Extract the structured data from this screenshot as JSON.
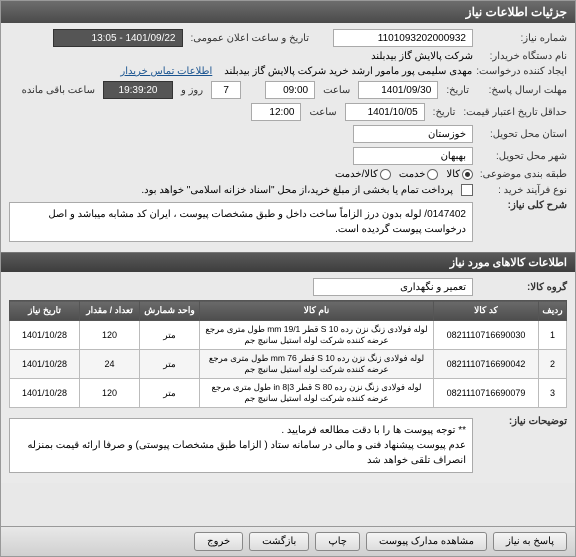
{
  "window": {
    "title": "جزئیات اطلاعات نیاز"
  },
  "need": {
    "number_label": "شماره نیاز:",
    "number": "1101093202000932",
    "announce_label": "تاریخ و ساعت اعلان عمومی:",
    "announce": "1401/09/22 - 13:05",
    "buyer_label": "نام دستگاه خریدار:",
    "buyer": "شرکت پالایش گاز بیدبلند",
    "creator_label": "ایجاد کننده درخواست:",
    "creator": "مهدی سلیمی پور مامور ارشد خرید شرکت پالایش گاز بیدبلند",
    "contact_link": "اطلاعات تماس خریدار",
    "deadline_label": "حداقل تاریخ اعتبار قیمت:",
    "deadline_date": "1401/10/05",
    "deadline_time": "12:00",
    "reply_deadline_label": "مهلت ارسال پاسخ:",
    "reply_date": "1401/09/30",
    "reply_time": "09:00",
    "days_label": "روز و",
    "days": "7",
    "remain_time": "19:39:20",
    "remain_label": "ساعت باقی مانده",
    "time_label": "ساعت",
    "province_label": "استان محل تحویل:",
    "province": "خوزستان",
    "city_label": "شهر محل تحویل:",
    "city": "بهبهان",
    "subject_label": "طبقه بندی موضوعی:",
    "subject_goods": "کالا",
    "subject_service": "خدمت",
    "subject_both": "کالا/خدمت",
    "process_label": "نوع فرآیند خرید :",
    "process_note": "پرداخت تمام یا بخشی از مبلغ خرید،از محل \"اسناد خزانه اسلامی\" خواهد بود.",
    "desc_label": "شرح کلی نیاز:",
    "desc": "0147402/ لوله بدون درز الزاماً ساخت داخل و طبق مشخصات پیوست ، ایران کد مشابه میباشد و اصل درخواست پیوست گردیده است."
  },
  "items": {
    "header": "اطلاعات کالاهای مورد نیاز",
    "group_label": "گروه کالا:",
    "group": "تعمیر و نگهداری",
    "columns": {
      "row": "ردیف",
      "code": "کد کالا",
      "name": "نام کالا",
      "unit": "واحد شمارش",
      "qty": "تعداد / مقدار",
      "date": "تاریخ نیاز"
    },
    "rows": [
      {
        "n": "1",
        "code": "0821110716690030",
        "name": "لوله فولادی زنگ نزن رده 10 S قطر mm 19/1 طول متری مرجع عرضه کننده شرکت لوله استیل سانیچ جم",
        "unit": "متر",
        "qty": "120",
        "date": "1401/10/28"
      },
      {
        "n": "2",
        "code": "0821110716690042",
        "name": "لوله فولادی زنگ نزن رده 10 S قطر mm 76 طول متری مرجع عرضه کننده شرکت لوله استیل سانیچ جم",
        "unit": "متر",
        "qty": "24",
        "date": "1401/10/28"
      },
      {
        "n": "3",
        "code": "0821110716690079",
        "name": "لوله فولادی زنگ نزن رده 80 S قطر 3|8 in طول متری مرجع عرضه کننده شرکت لوله استیل سانیچ جم",
        "unit": "متر",
        "qty": "120",
        "date": "1401/10/28"
      }
    ]
  },
  "notes": {
    "label": "توضیحات نیاز:",
    "text": "** توجه پیوست ها  را با دقت مطالعه فرمایید .\nعدم پیوست پیشنهاد فنی و مالی در سامانه ستاد ( الزاما طبق مشخصات پیوستی)  و صرفا ارائه قیمت بمنزله انصراف تلقی خواهد شد"
  },
  "footer": {
    "reply": "پاسخ به نیاز",
    "docs": "مشاهده مدارک پیوست",
    "print": "چاپ",
    "back": "بازگشت",
    "exit": "خروج"
  }
}
